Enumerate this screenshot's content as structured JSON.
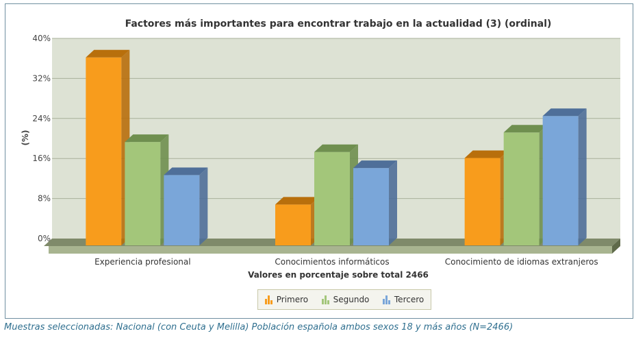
{
  "chart_data": {
    "type": "bar",
    "title": "Factores más importantes para encontrar trabajo en la actualidad (3) (ordinal)",
    "xlabel": "Valores en porcentaje sobre total 2466",
    "ylabel": "(%)",
    "ylim": [
      0,
      40
    ],
    "yticks": [
      "0%",
      "8%",
      "16%",
      "24%",
      "32%",
      "40%"
    ],
    "categories": [
      "Experiencia profesional",
      "Conocimientos informáticos",
      "Conocimiento de idiomas extranjeros"
    ],
    "series": [
      {
        "name": "Primero",
        "color": "#f89c1c",
        "side": "#b86f0c",
        "values": [
          37.7,
          8.3,
          17.6
        ]
      },
      {
        "name": "Segundo",
        "color": "#a3c67a",
        "side": "#6f8f4f",
        "values": [
          20.8,
          18.8,
          22.7
        ]
      },
      {
        "name": "Tercero",
        "color": "#7aa6d9",
        "side": "#4f6f99",
        "values": [
          14.2,
          15.6,
          26.0
        ]
      }
    ],
    "grid": true,
    "legend": "bottom",
    "style": "3d"
  },
  "footer": "Muestras seleccionadas: Nacional (con Ceuta y Melilla) Población española ambos sexos 18 y más años (N=2466)"
}
